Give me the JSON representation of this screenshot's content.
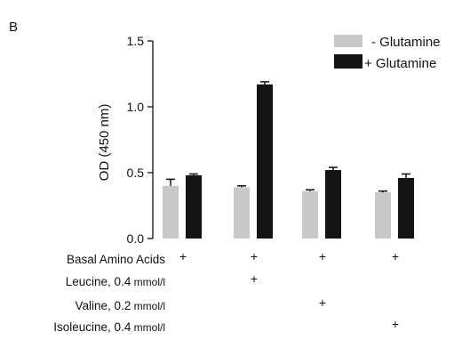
{
  "panel_label": "B",
  "colors": {
    "minus": "#c8c8c8",
    "plus": "#141414"
  },
  "chart_data": {
    "type": "bar",
    "ylabel": "OD (450 nm)",
    "ylim": [
      0,
      1.5
    ],
    "yticks": [
      0,
      0.5,
      1.0,
      1.5
    ],
    "ytick_labels": [
      "0.0",
      "0.5",
      "1.0",
      "1.5"
    ],
    "categories": [
      "Basal",
      "Basal + Leucine",
      "Basal + Valine",
      "Basal + Isoleucine"
    ],
    "series": [
      {
        "name": "- Glutamine",
        "color": "#c8c8c8",
        "values": [
          0.4,
          0.39,
          0.36,
          0.35
        ],
        "errors": [
          0.05,
          0.01,
          0.01,
          0.01
        ]
      },
      {
        "name": "+ Glutamine",
        "color": "#141414",
        "values": [
          0.48,
          1.17,
          0.52,
          0.46
        ],
        "errors": [
          0.01,
          0.02,
          0.02,
          0.03
        ]
      }
    ],
    "legend_position": "top-right",
    "conditions": [
      {
        "name": "Basal Amino Acids",
        "unit": "",
        "present": [
          true,
          true,
          true,
          true
        ]
      },
      {
        "name": "Leucine, 0.4",
        "unit": "mmol/l",
        "present": [
          false,
          true,
          false,
          false
        ]
      },
      {
        "name": "Valine, 0.2",
        "unit": "mmol/l",
        "present": [
          false,
          false,
          true,
          false
        ]
      },
      {
        "name": "Isoleucine, 0.4",
        "unit": "mmol/l",
        "present": [
          false,
          false,
          false,
          true
        ]
      }
    ],
    "present_marker": "+"
  }
}
